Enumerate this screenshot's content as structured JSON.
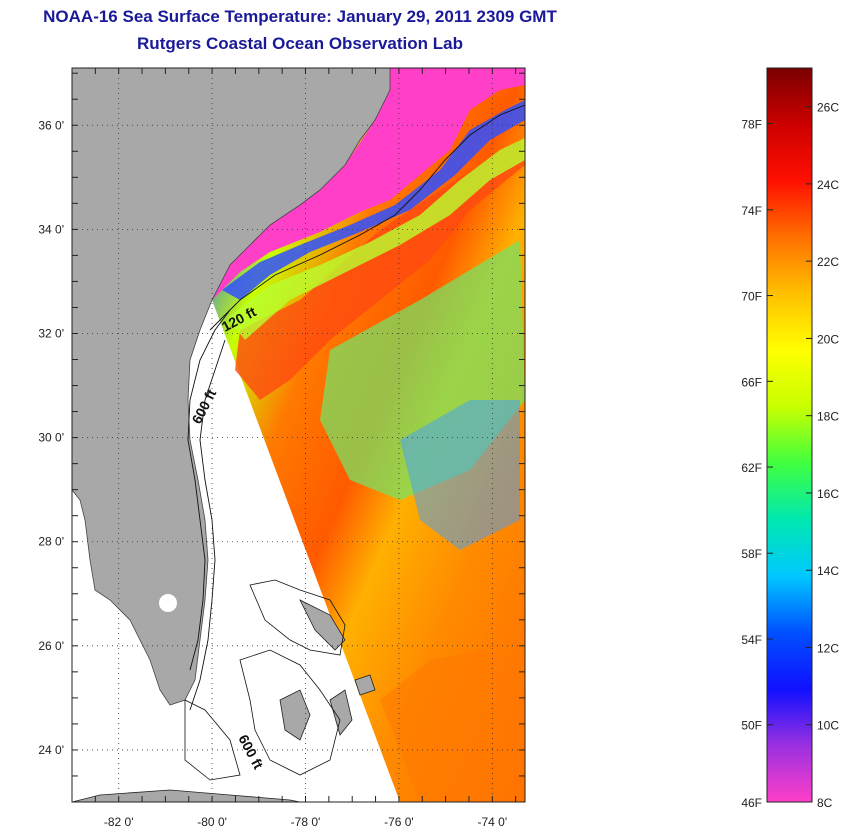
{
  "header": {
    "title": "NOAA-16 Sea Surface Temperature:  January 29, 2011 2309 GMT",
    "subtitle": "Rutgers Coastal Ocean Observation Lab"
  },
  "map": {
    "lon_range": [
      -83,
      -73.3
    ],
    "lat_range": [
      23,
      37.1
    ],
    "lon_ticks": [
      {
        "value": -82,
        "label": "-82 0'"
      },
      {
        "value": -80,
        "label": "-80 0'"
      },
      {
        "value": -78,
        "label": "-78 0'"
      },
      {
        "value": -76,
        "label": "-76 0'"
      },
      {
        "value": -74,
        "label": "-74 0'"
      }
    ],
    "lat_ticks": [
      {
        "value": 36,
        "label": "36 0'"
      },
      {
        "value": 34,
        "label": "34 0'"
      },
      {
        "value": 32,
        "label": "32 0'"
      },
      {
        "value": 30,
        "label": "30 0'"
      },
      {
        "value": 28,
        "label": "28 0'"
      },
      {
        "value": 26,
        "label": "26 0'"
      },
      {
        "value": 24,
        "label": "24 0'"
      }
    ],
    "grid": "dotted",
    "land_color": "#a8a8a8",
    "contour_labels": {
      "shelf": "120 ft",
      "slope_north": "600 ft",
      "slope_south": "600 ft"
    }
  },
  "colorbar": {
    "min_c": 8,
    "max_c": 27,
    "fahrenheit_labels": [
      {
        "value_c": 7.78,
        "label": "46F"
      },
      {
        "value_c": 10,
        "label": "50F"
      },
      {
        "value_c": 12.22,
        "label": "54F"
      },
      {
        "value_c": 14.44,
        "label": "58F"
      },
      {
        "value_c": 16.67,
        "label": "62F"
      },
      {
        "value_c": 18.89,
        "label": "66F"
      },
      {
        "value_c": 21.11,
        "label": "70F"
      },
      {
        "value_c": 23.33,
        "label": "74F"
      },
      {
        "value_c": 25.56,
        "label": "78F"
      }
    ],
    "celsius_labels": [
      {
        "value_c": 8,
        "label": "8C"
      },
      {
        "value_c": 10,
        "label": "10C"
      },
      {
        "value_c": 12,
        "label": "12C"
      },
      {
        "value_c": 14,
        "label": "14C"
      },
      {
        "value_c": 16,
        "label": "16C"
      },
      {
        "value_c": 18,
        "label": "18C"
      },
      {
        "value_c": 20,
        "label": "20C"
      },
      {
        "value_c": 22,
        "label": "22C"
      },
      {
        "value_c": 24,
        "label": "24C"
      },
      {
        "value_c": 26,
        "label": "26C"
      }
    ],
    "colormap": [
      "#ff3fc8",
      "#9a30e0",
      "#1010ff",
      "#0050ff",
      "#00c8ff",
      "#00e8b0",
      "#40ff40",
      "#c8ff00",
      "#ffff00",
      "#ffc000",
      "#ff7000",
      "#ff1000",
      "#cc0000",
      "#7a0000"
    ]
  }
}
